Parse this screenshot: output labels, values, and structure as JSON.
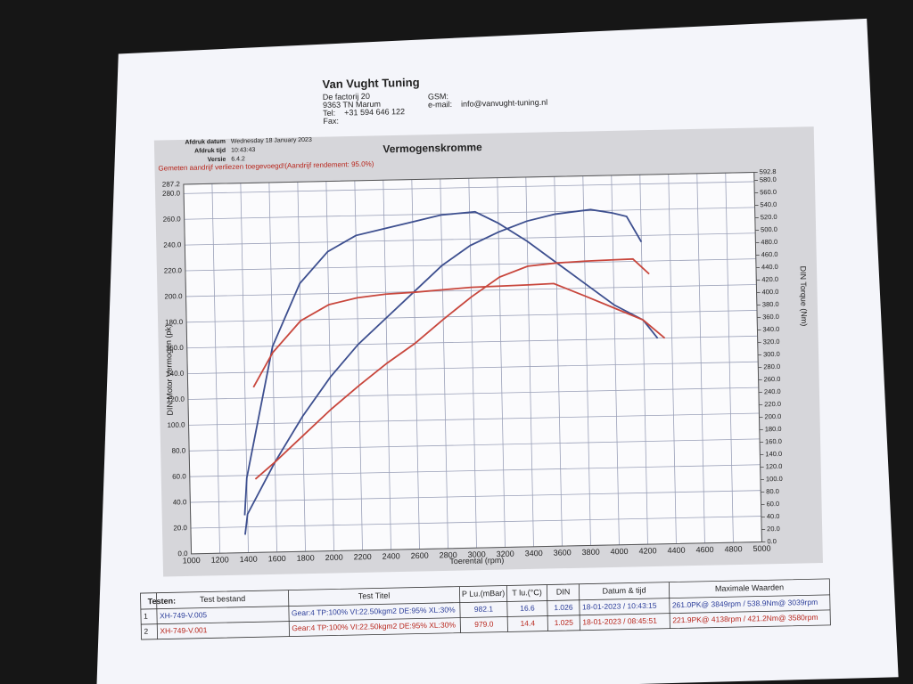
{
  "header": {
    "company": "Van Vught Tuning",
    "address": "De factorij 20",
    "postcode": "9363 TN Marum",
    "tel_label": "Tel:",
    "tel": "+31 594 646 122",
    "fax_label": "Fax:",
    "gsm_label": "GSM:",
    "email_label": "e-mail:",
    "email": "info@vanvught-tuning.nl"
  },
  "meta": [
    {
      "label": "Afdruk datum",
      "value": "Wednesday 18 January 2023"
    },
    {
      "label": "Afdruk tijd",
      "value": "10:43:43"
    },
    {
      "label": "Versie",
      "value": "6.4.2"
    }
  ],
  "chart_data": {
    "type": "line",
    "title": "Vermogenskromme",
    "subtitle": "Gemeten aandrijf verliezen toegevoegd!(Aandrijf rendement: 95.0%)",
    "xlabel": "Toerental (rpm)",
    "ylabel": "DIN Motor Vermogen (pk)",
    "y2label": "DIN Torque (Nm)",
    "xlim": [
      1000,
      5000
    ],
    "xticks": [
      1000,
      1200,
      1400,
      1600,
      1800,
      2000,
      2200,
      2400,
      2600,
      2800,
      3000,
      3200,
      3400,
      3600,
      3800,
      4000,
      4200,
      4400,
      4600,
      4800,
      5000
    ],
    "ylim": [
      0,
      287.2
    ],
    "yticks": [
      {
        "value": 0,
        "label": "0.0"
      },
      {
        "value": 20,
        "label": "20.0"
      },
      {
        "value": 40,
        "label": "40.0"
      },
      {
        "value": 60,
        "label": "60.0"
      },
      {
        "value": 80,
        "label": "80.0"
      },
      {
        "value": 100,
        "label": "100.0"
      },
      {
        "value": 120,
        "label": "120.0"
      },
      {
        "value": 140,
        "label": "140.0"
      },
      {
        "value": 160,
        "label": "160.0"
      },
      {
        "value": 180,
        "label": "180.0"
      },
      {
        "value": 200,
        "label": "200.0"
      },
      {
        "value": 220,
        "label": "220.0"
      },
      {
        "value": 240,
        "label": "240.0"
      },
      {
        "value": 260,
        "label": "260.0"
      },
      {
        "value": 280,
        "label": "280.0"
      },
      287.2
    ],
    "y2lim": [
      0,
      592.8
    ],
    "y2ticks": [
      {
        "value": 0,
        "label": "0.0"
      },
      {
        "value": 20,
        "label": "20.0"
      },
      {
        "value": 40,
        "label": "40.0"
      },
      {
        "value": 60,
        "label": "60.0"
      },
      {
        "value": 80,
        "label": "80.0"
      },
      {
        "value": 100,
        "label": "100.0"
      },
      {
        "value": 120,
        "label": "120.0"
      },
      {
        "value": 140,
        "label": "140.0"
      },
      {
        "value": 160,
        "label": "160.0"
      },
      {
        "value": 180,
        "label": "180.0"
      },
      {
        "value": 200,
        "label": "200.0"
      },
      {
        "value": 220,
        "label": "220.0"
      },
      {
        "value": 240,
        "label": "240.0"
      },
      {
        "value": 260,
        "label": "260.0"
      },
      {
        "value": 280,
        "label": "280.0"
      },
      {
        "value": 300,
        "label": "300.0"
      },
      {
        "value": 320,
        "label": "320.0"
      },
      {
        "value": 340,
        "label": "340.0"
      },
      {
        "value": 360,
        "label": "360.0"
      },
      {
        "value": 380,
        "label": "380.0"
      },
      {
        "value": 400,
        "label": "400.0"
      },
      {
        "value": 420,
        "label": "420.0"
      },
      {
        "value": 440,
        "label": "440.0"
      },
      {
        "value": 460,
        "label": "460.0"
      },
      {
        "value": 480,
        "label": "480.0"
      },
      {
        "value": 500,
        "label": "500.0"
      },
      {
        "value": 520,
        "label": "520.0"
      },
      {
        "value": 540,
        "label": "540.0"
      },
      {
        "value": 560,
        "label": "560.0"
      },
      {
        "value": 580,
        "label": "580.0"
      },
      592.8
    ],
    "grid": true,
    "series": [
      {
        "color": "#3d4f8f",
        "axis": "y2",
        "x": [
          1380,
          1400,
          1600,
          1800,
          2000,
          2200,
          2400,
          2600,
          2800,
          3039,
          3200,
          3400,
          3600,
          3800,
          4000,
          4200,
          4300
        ],
        "values": [
          60,
          120,
          330,
          430,
          480,
          505,
          515,
          525,
          535,
          538.9,
          520,
          490,
          455,
          420,
          385,
          360,
          330
        ]
      },
      {
        "color": "#3d4f8f",
        "x": [
          1380,
          1400,
          1600,
          1800,
          2000,
          2200,
          2400,
          2600,
          2800,
          3000,
          3200,
          3400,
          3600,
          3849,
          4000,
          4100,
          4200
        ],
        "values": [
          14,
          30,
          70,
          105,
          135,
          160,
          180,
          200,
          220,
          235,
          245,
          253,
          258,
          261,
          258,
          255,
          235
        ]
      },
      {
        "color": "#c8463c",
        "axis": "y2",
        "x": [
          1460,
          1600,
          1800,
          2000,
          2200,
          2400,
          2600,
          2800,
          3000,
          3200,
          3400,
          3580,
          3800,
          4000,
          4200,
          4350
        ],
        "values": [
          265,
          320,
          370,
          395,
          405,
          410,
          412,
          415,
          418,
          419,
          420,
          421.2,
          400,
          380,
          360,
          330
        ]
      },
      {
        "color": "#c8463c",
        "x": [
          1460,
          1600,
          1800,
          2000,
          2200,
          2400,
          2600,
          2800,
          3000,
          3200,
          3400,
          3600,
          3800,
          4000,
          4138,
          4250
        ],
        "values": [
          57,
          70,
          90,
          110,
          128,
          145,
          160,
          178,
          195,
          210,
          218,
          220,
          221,
          221.5,
          221.9,
          210
        ]
      }
    ]
  },
  "table": {
    "caption": "Testen:",
    "headers": [
      "Test bestand",
      "Test Titel",
      "P Lu.(mBar)",
      "T lu.(°C)",
      "DIN",
      "Datum & tijd",
      "Maximale Waarden"
    ],
    "rows": [
      [
        "1",
        "XH-749-V.005",
        "Gear:4 TP:100% VI:22.50kgm2 DE:95% XL:30%",
        "982.1",
        "16.6",
        "1.026",
        "18-01-2023 / 10:43:15",
        "261.0PK@ 3849rpm / 538.9Nm@ 3039rpm"
      ],
      [
        "2",
        "XH-749-V.001",
        "Gear:4 TP:100% VI:22.50kgm2 DE:95% XL:30%",
        "979.0",
        "14.4",
        "1.025",
        "18-01-2023 / 08:45:51",
        "221.9PK@ 4138rpm / 421.2Nm@ 3580rpm"
      ]
    ]
  }
}
